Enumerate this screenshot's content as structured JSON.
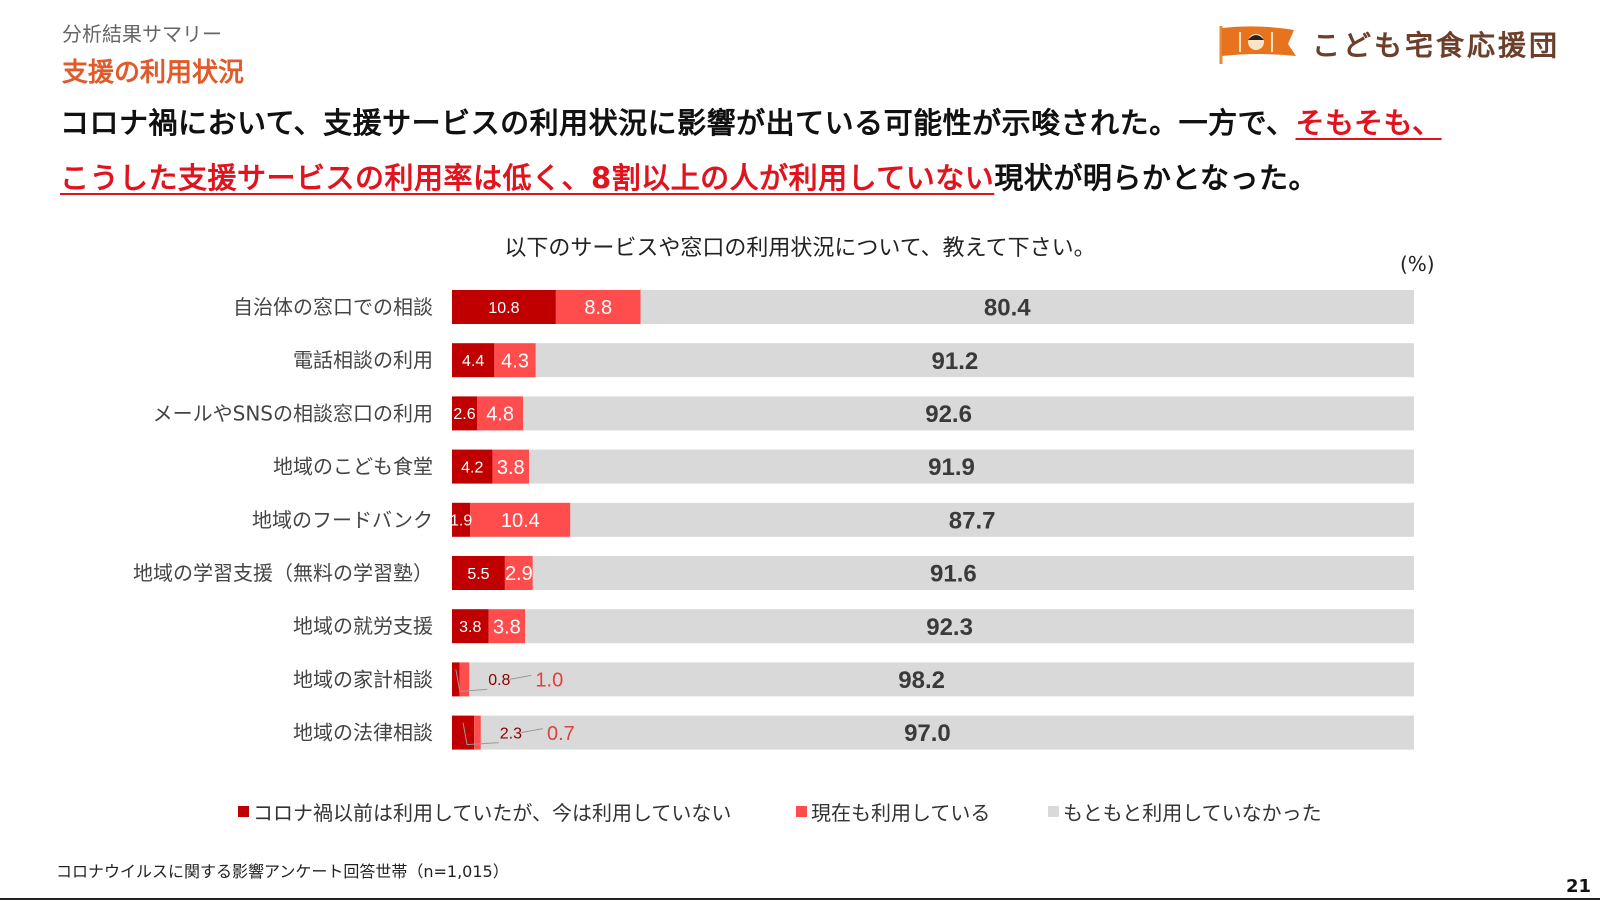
{
  "header": {
    "kicker": "分析結果サマリー",
    "section": "支援の利用状況",
    "headline_line1_a": "コロナ禍において、支援サービスの利用状況に影響が出ている可能性が示唆された。一方で、",
    "headline_line1_b": "そもそも、",
    "headline_line2_a": "こうした支援サービスの利用率は低く、8割以上の人が利用していない",
    "headline_line2_b": "現状が明らかとなった。"
  },
  "logo": {
    "text": "こども宅食応援団"
  },
  "colors": {
    "dark_red": "#c00000",
    "light_red": "#ff4d4d",
    "gray": "#d9d9d9",
    "accent": "#e05a2a"
  },
  "chart_data": {
    "type": "bar",
    "orientation": "horizontal-stacked-100",
    "title": "以下のサービスや窓口の利用状況について、教えて下さい。",
    "unit": "(%)",
    "categories": [
      "自治体の窓口での相談",
      "電話相談の利用",
      "メールやSNSの相談窓口の利用",
      "地域のこども食堂",
      "地域のフードバンク",
      "地域の学習支援（無料の学習塾）",
      "地域の就労支援",
      "地域の家計相談",
      "地域の法律相談"
    ],
    "series": [
      {
        "name": "コロナ禍以前は利用していたが、今は利用していない",
        "values": [
          10.8,
          4.4,
          2.6,
          4.2,
          1.9,
          5.5,
          3.8,
          0.8,
          2.3
        ]
      },
      {
        "name": "現在も利用している",
        "values": [
          8.8,
          4.3,
          4.8,
          3.8,
          10.4,
          2.9,
          3.8,
          1.0,
          0.7
        ]
      },
      {
        "name": "もともと利用していなかった",
        "values": [
          80.4,
          91.2,
          92.6,
          91.9,
          87.7,
          91.6,
          92.3,
          98.2,
          97.0
        ]
      }
    ],
    "legend_position": "bottom",
    "xlim": [
      0,
      100
    ]
  },
  "footnote": "コロナウイルスに関する影響アンケート回答世帯（n=1,015）",
  "page_number": "21"
}
